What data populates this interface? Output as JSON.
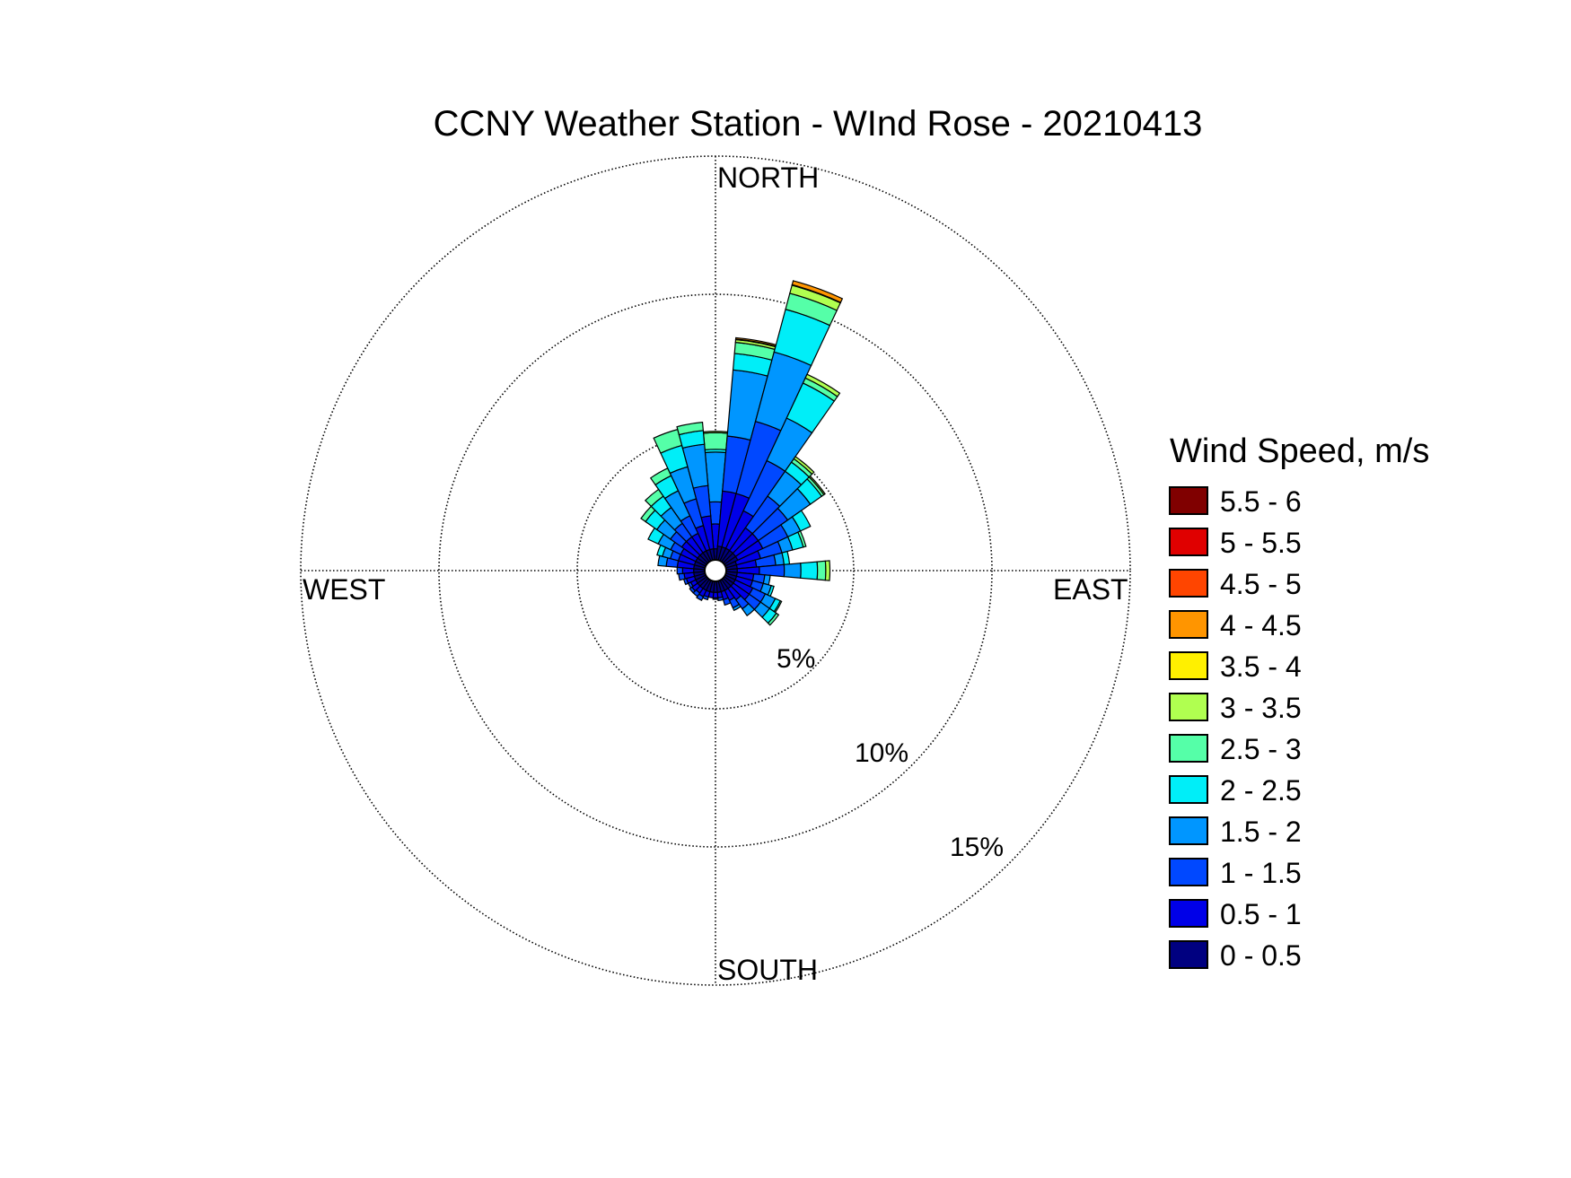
{
  "chart_data": {
    "type": "wind-rose",
    "title": "CCNY Weather Station - WInd Rose - 20210413",
    "direction_labels": {
      "north": "NORTH",
      "east": "EAST",
      "south": "SOUTH",
      "west": "WEST"
    },
    "radial_axis": {
      "unit": "%",
      "max": 15,
      "ticks": [
        5,
        10,
        15
      ],
      "tick_labels": [
        "5%",
        "10%",
        "15%"
      ],
      "grid": "dotted"
    },
    "legend": {
      "title": "Wind Speed, m/s",
      "placement": "right",
      "entries": [
        {
          "label": "5.5 - 6",
          "color": "#800000"
        },
        {
          "label": "5 - 5.5",
          "color": "#E00000"
        },
        {
          "label": "4.5 - 5",
          "color": "#FF4500"
        },
        {
          "label": "4 - 4.5",
          "color": "#FF9500"
        },
        {
          "label": "3.5 - 4",
          "color": "#FFF000"
        },
        {
          "label": "3 - 3.5",
          "color": "#B0FF50"
        },
        {
          "label": "2.5 - 3",
          "color": "#55FFA8"
        },
        {
          "label": "2 - 2.5",
          "color": "#00EEF8"
        },
        {
          "label": "1.5 - 2",
          "color": "#0096FF"
        },
        {
          "label": "1 - 1.5",
          "color": "#0048FF"
        },
        {
          "label": "0.5 - 1",
          "color": "#0000E8"
        },
        {
          "label": "0 - 0.5",
          "color": "#000080"
        }
      ]
    },
    "bins": {
      "sector_width_deg": 10,
      "speed_classes": [
        "0 - 0.5",
        "0.5 - 1",
        "1 - 1.5",
        "1.5 - 2",
        "2 - 2.5",
        "2.5 - 3",
        "3 - 3.5",
        "3.5 - 4",
        "4 - 4.5",
        "4.5 - 5",
        "5 - 5.5",
        "5.5 - 6"
      ],
      "colors": [
        "#000080",
        "#0000E8",
        "#0048FF",
        "#0096FF",
        "#00EEF8",
        "#55FFA8",
        "#B0FF50",
        "#FFF000",
        "#FF9500",
        "#FF4500",
        "#E00000",
        "#800000"
      ]
    },
    "sectors": [
      {
        "dir": 0,
        "values": [
          0.4,
          0.9,
          0.8,
          1.8,
          0.1,
          0.6,
          0.05
        ]
      },
      {
        "dir": 10,
        "values": [
          0.5,
          2.0,
          2.0,
          2.4,
          0.6,
          0.4,
          0.1,
          0.02,
          0.05
        ]
      },
      {
        "dir": 20,
        "values": [
          0.5,
          2.0,
          2.7,
          2.6,
          1.6,
          0.6,
          0.3,
          0.02,
          0.15
        ]
      },
      {
        "dir": 30,
        "values": [
          0.5,
          1.5,
          2.0,
          1.7,
          1.4,
          0.2,
          0.15
        ]
      },
      {
        "dir": 40,
        "values": [
          0.5,
          1.0,
          1.4,
          1.1,
          0.4,
          0.15,
          0.1
        ]
      },
      {
        "dir": 50,
        "values": [
          0.5,
          1.0,
          1.3,
          1.0,
          0.5,
          0.1,
          0.05
        ]
      },
      {
        "dir": 60,
        "values": [
          0.5,
          1.0,
          1.0,
          0.5,
          0.4
        ]
      },
      {
        "dir": 70,
        "values": [
          0.4,
          0.9,
          0.8,
          0.4,
          0.4,
          0.1
        ]
      },
      {
        "dir": 80,
        "values": [
          0.4,
          0.7,
          0.7,
          0.3,
          0.2
        ]
      },
      {
        "dir": 90,
        "values": [
          0.4,
          0.8,
          0.9,
          0.6,
          0.6,
          0.3,
          0.15
        ]
      },
      {
        "dir": 100,
        "values": [
          0.4,
          0.6,
          0.4,
          0.2
        ]
      },
      {
        "dir": 110,
        "values": [
          0.4,
          0.6,
          0.4,
          0.3,
          0.1
        ]
      },
      {
        "dir": 120,
        "values": [
          0.4,
          0.7,
          0.5,
          0.4,
          0.2,
          0.05
        ]
      },
      {
        "dir": 130,
        "values": [
          0.4,
          0.7,
          0.5,
          0.4,
          0.3,
          0.1
        ]
      },
      {
        "dir": 140,
        "values": [
          0.4,
          0.5,
          0.4,
          0.3
        ]
      },
      {
        "dir": 150,
        "values": [
          0.4,
          0.4,
          0.3,
          0.1
        ]
      },
      {
        "dir": 160,
        "values": [
          0.4,
          0.3,
          0.2
        ]
      },
      {
        "dir": 170,
        "values": [
          0.4,
          0.2,
          0.1
        ]
      },
      {
        "dir": 180,
        "values": [
          0.4,
          0.2,
          0.05
        ]
      },
      {
        "dir": 190,
        "values": [
          0.4,
          0.2
        ]
      },
      {
        "dir": 200,
        "values": [
          0.4,
          0.2,
          0.1
        ]
      },
      {
        "dir": 210,
        "values": [
          0.4,
          0.25,
          0.15
        ]
      },
      {
        "dir": 220,
        "values": [
          0.4,
          0.2,
          0.15
        ]
      },
      {
        "dir": 230,
        "values": [
          0.4,
          0.25,
          0.1
        ]
      },
      {
        "dir": 240,
        "values": [
          0.4,
          0.2,
          0.1
        ]
      },
      {
        "dir": 250,
        "values": [
          0.4,
          0.3,
          0.1
        ]
      },
      {
        "dir": 260,
        "values": [
          0.4,
          0.35,
          0.2
        ]
      },
      {
        "dir": 270,
        "values": [
          0.4,
          0.4,
          0.2
        ]
      },
      {
        "dir": 280,
        "values": [
          0.4,
          0.6,
          0.4,
          0.3
        ]
      },
      {
        "dir": 290,
        "values": [
          0.4,
          0.6,
          0.3,
          0.3,
          0.2
        ]
      },
      {
        "dir": 300,
        "values": [
          0.4,
          0.6,
          0.4,
          0.5,
          0.4
        ]
      },
      {
        "dir": 310,
        "values": [
          0.4,
          0.7,
          0.5,
          0.6,
          0.5,
          0.2
        ]
      },
      {
        "dir": 320,
        "values": [
          0.4,
          0.7,
          0.6,
          0.7,
          0.5,
          0.3
        ]
      },
      {
        "dir": 330,
        "values": [
          0.4,
          0.7,
          0.7,
          1.0,
          0.6,
          0.3
        ]
      },
      {
        "dir": 340,
        "values": [
          0.4,
          0.9,
          1.0,
          1.2,
          0.8,
          0.6
        ]
      },
      {
        "dir": 350,
        "values": [
          0.4,
          1.2,
          1.1,
          1.5,
          0.5,
          0.3
        ]
      }
    ]
  }
}
